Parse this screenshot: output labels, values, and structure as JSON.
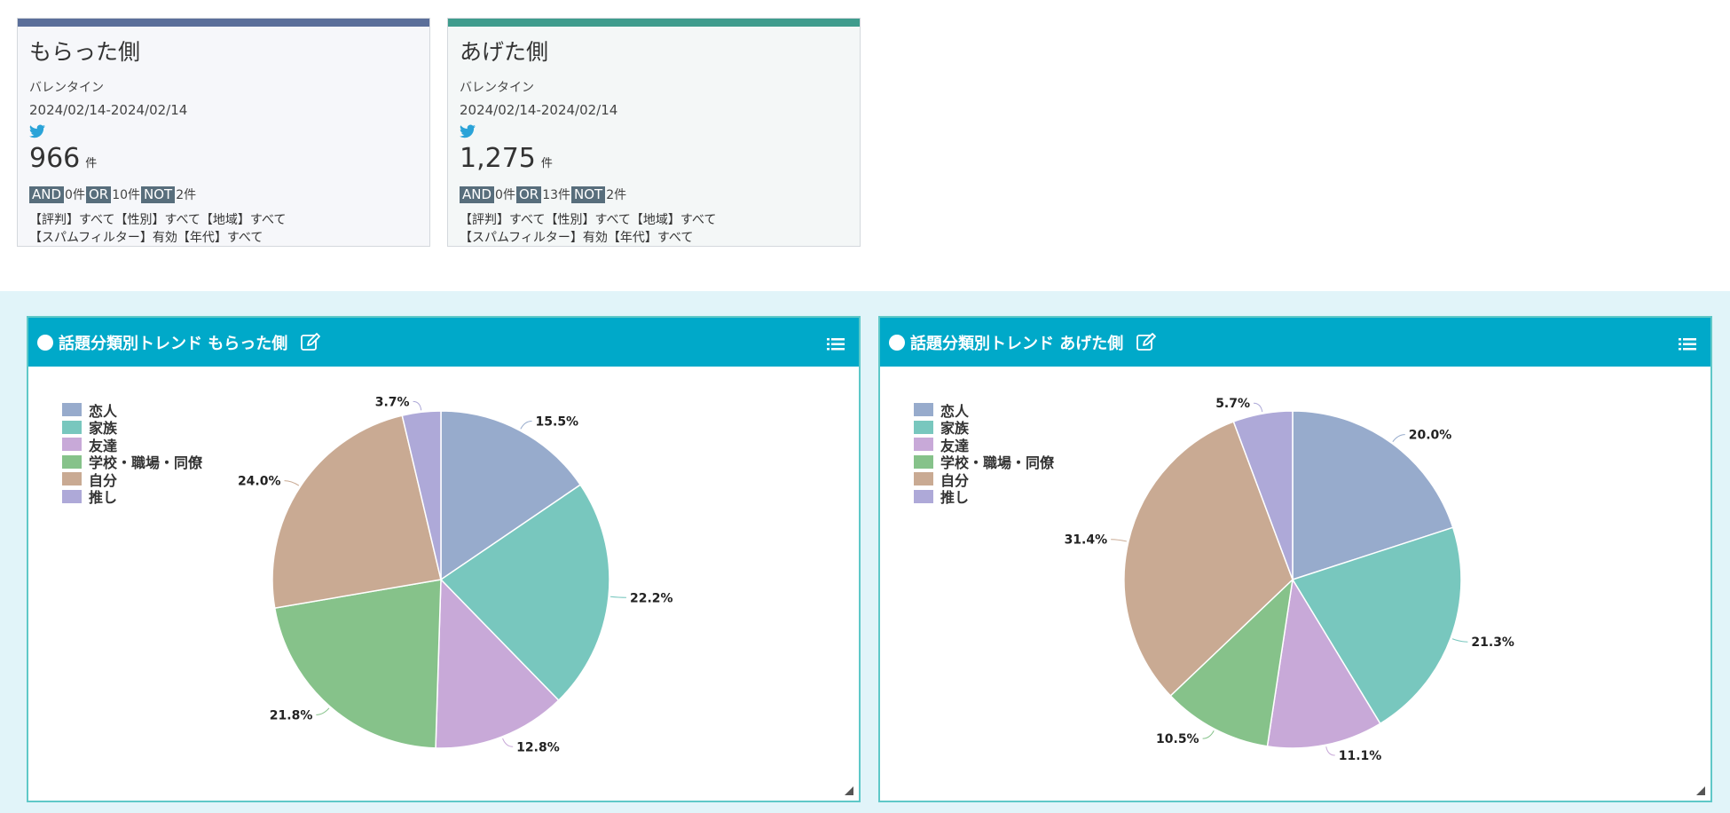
{
  "cards": [
    {
      "title": "もらった側",
      "category": "バレンタイン",
      "date_range": "2024/02/14-2024/02/14",
      "icon": "twitter-bird-icon",
      "count": "966",
      "count_unit": "件",
      "and_label": "AND",
      "and_count": "0件",
      "or_label": "OR",
      "or_count": "10件",
      "not_label": "NOT",
      "not_count": "2件",
      "filter_line1": "【評判】すべて【性別】すべて【地域】すべて",
      "filter_line2": "【スパムフィルター】有効【年代】すべて",
      "accent": "#5b6f9a"
    },
    {
      "title": "あげた側",
      "category": "バレンタイン",
      "date_range": "2024/02/14-2024/02/14",
      "icon": "twitter-bird-icon",
      "count": "1,275",
      "count_unit": "件",
      "and_label": "AND",
      "and_count": "0件",
      "or_label": "OR",
      "or_count": "13件",
      "not_label": "NOT",
      "not_count": "2件",
      "filter_line1": "【評判】すべて【性別】すべて【地域】すべて",
      "filter_line2": "【スパムフィルター】有効【年代】すべて",
      "accent": "#3f9c8d"
    }
  ],
  "panels": [
    {
      "title": "話題分類別トレンド もらった側",
      "edit_icon": "edit-icon",
      "menu_icon": "list-menu-icon"
    },
    {
      "title": "話題分類別トレンド あげた側",
      "edit_icon": "edit-icon",
      "menu_icon": "list-menu-icon"
    }
  ],
  "colors": {
    "header": "#00a9c9",
    "twitter": "#2aa3d8",
    "slices": [
      "#97abcc",
      "#78c7be",
      "#c8a9d8",
      "#86c28a",
      "#c9aa93",
      "#aea9d8"
    ]
  },
  "chart_data": [
    {
      "type": "pie",
      "categories": [
        "恋人",
        "家族",
        "友達",
        "学校・職場・同僚",
        "自分",
        "推し"
      ],
      "values": [
        15.5,
        22.2,
        12.8,
        21.8,
        24.0,
        3.7
      ],
      "labels": [
        "15.5%",
        "22.2%",
        "12.8%",
        "21.8%",
        "24.0%",
        "3.7%"
      ],
      "legend_position": "top-left"
    },
    {
      "type": "pie",
      "categories": [
        "恋人",
        "家族",
        "友達",
        "学校・職場・同僚",
        "自分",
        "推し"
      ],
      "values": [
        20.0,
        21.3,
        11.1,
        10.5,
        31.4,
        5.7
      ],
      "labels": [
        "20.0%",
        "21.3%",
        "11.1%",
        "10.5%",
        "31.4%",
        "5.7%"
      ],
      "legend_position": "top-left"
    }
  ]
}
